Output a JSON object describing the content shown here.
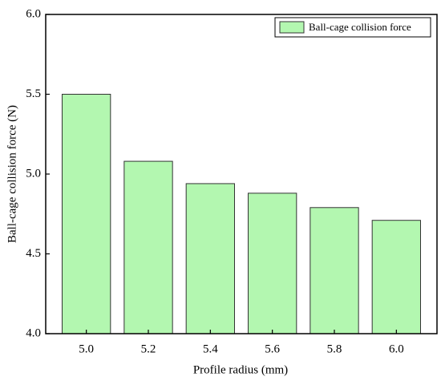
{
  "chart_data": {
    "type": "bar",
    "x_label": "Profile radius (mm)",
    "y_label": "Ball-cage collision force (N)",
    "categories": [
      "5.0",
      "5.2",
      "5.4",
      "5.6",
      "5.8",
      "6.0"
    ],
    "series": [
      {
        "name": "Ball-cage collision force",
        "color": "#b3f7b0",
        "values": [
          5.5,
          5.08,
          4.94,
          4.88,
          4.79,
          4.71
        ]
      }
    ],
    "ylim": [
      4.0,
      6.0
    ],
    "yticks": [
      {
        "value": 4.0,
        "label": "4.0"
      },
      4.5,
      {
        "value": 5.0,
        "label": "5.0"
      },
      5.5,
      {
        "value": 6.0,
        "label": "6.0"
      }
    ],
    "legend": "top-right"
  }
}
